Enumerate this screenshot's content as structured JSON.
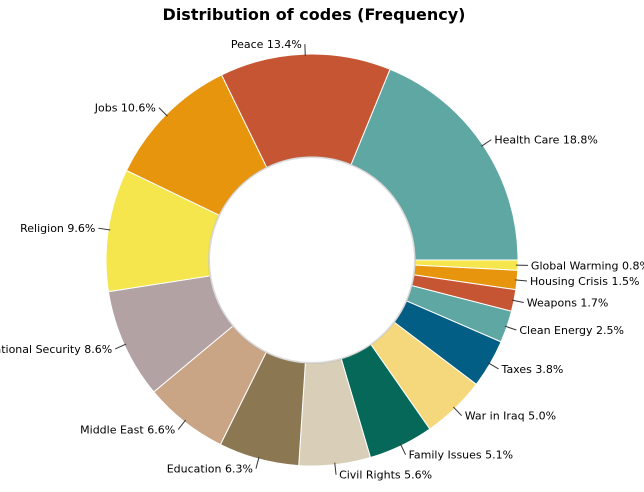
{
  "chart_data": {
    "type": "pie",
    "title": "Distribution of codes (Frequency)",
    "donut": true,
    "slices": [
      {
        "label": "Health Care",
        "value": 18.8,
        "value_label": "18.8%",
        "color": "#5fa7a3"
      },
      {
        "label": "Global Warming",
        "value": 0.8,
        "value_label": "0.8%",
        "color": "#f5e64e"
      },
      {
        "label": "Housing Crisis",
        "value": 1.5,
        "value_label": "1.5%",
        "color": "#e8950e"
      },
      {
        "label": "Weapons",
        "value": 1.7,
        "value_label": "1.7%",
        "color": "#c65533"
      },
      {
        "label": "Clean Energy",
        "value": 2.5,
        "value_label": "2.5%",
        "color": "#5fa7a3"
      },
      {
        "label": "Taxes",
        "value": 3.8,
        "value_label": "3.8%",
        "color": "#025e84"
      },
      {
        "label": "War in Iraq",
        "value": 5.0,
        "value_label": "5.0%",
        "color": "#f6d87c"
      },
      {
        "label": "Family Issues",
        "value": 5.1,
        "value_label": "5.1%",
        "color": "#066858"
      },
      {
        "label": "Civil Rights",
        "value": 5.6,
        "value_label": "5.6%",
        "color": "#d9cfb8"
      },
      {
        "label": "Education",
        "value": 6.3,
        "value_label": "6.3%",
        "color": "#8b7852"
      },
      {
        "label": "Middle East",
        "value": 6.6,
        "value_label": "6.6%",
        "color": "#c9a585"
      },
      {
        "label": "National Security",
        "value": 8.6,
        "value_label": "8.6%",
        "color": "#b2a2a4"
      },
      {
        "label": "Religion",
        "value": 9.6,
        "value_label": "9.6%",
        "color": "#f4e64c"
      },
      {
        "label": "Jobs",
        "value": 10.6,
        "value_label": "10.6%",
        "color": "#e8950e"
      },
      {
        "label": "Peace",
        "value": 13.4,
        "value_label": "13.4%",
        "color": "#c65533"
      }
    ]
  }
}
